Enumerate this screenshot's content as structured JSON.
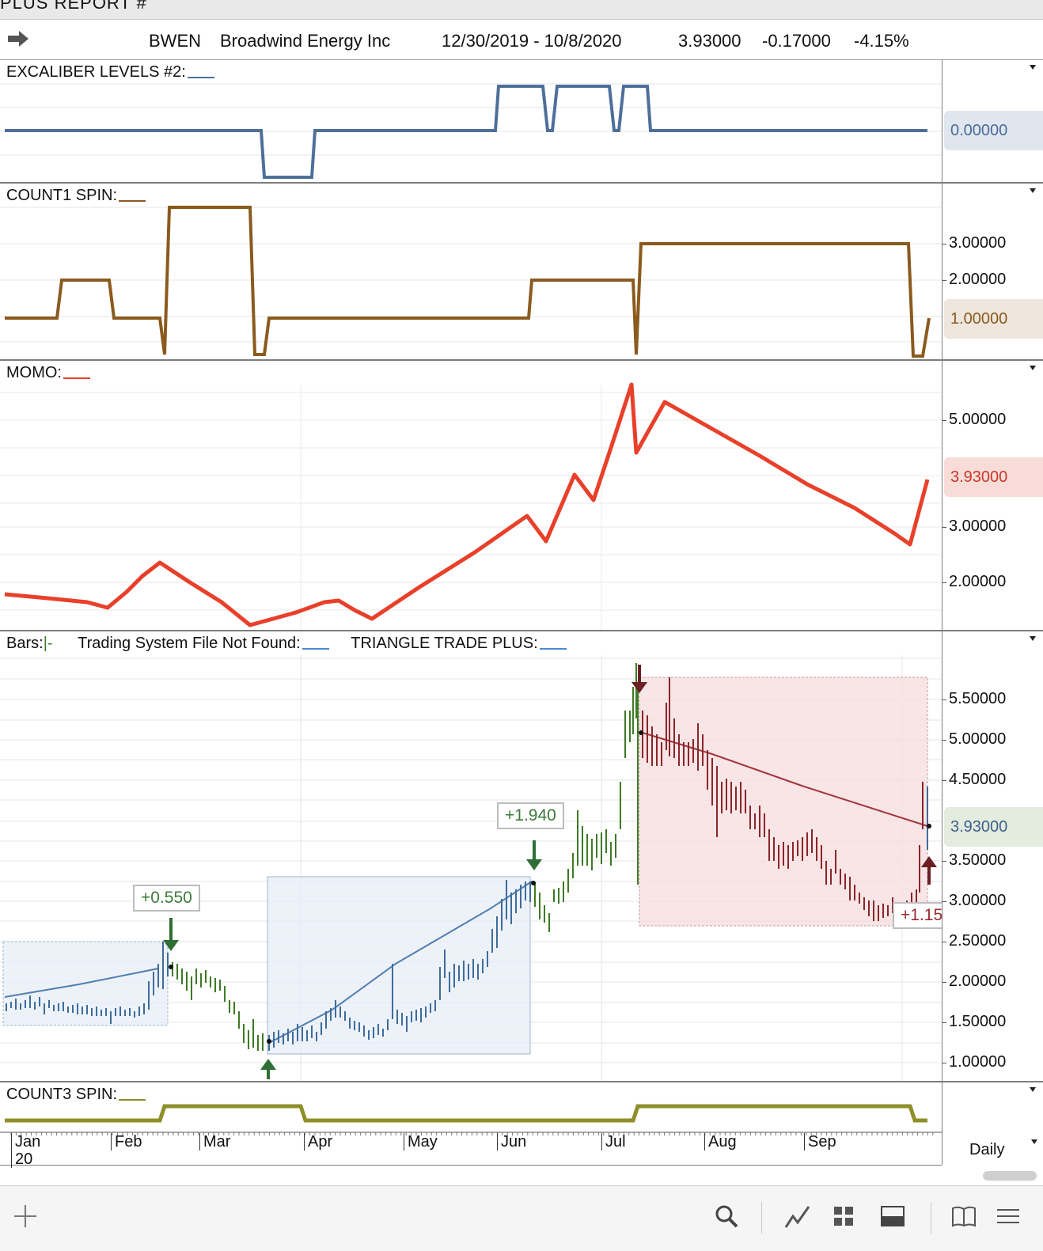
{
  "window": {
    "title_partial": "PLUS REPORT #"
  },
  "header": {
    "symbol": "BWEN",
    "company": "Broadwind Energy Inc",
    "date_range": "12/30/2019 - 10/8/2020",
    "last": "3.93000",
    "change": "-0.17000",
    "pct_change": "-4.15%"
  },
  "panels": {
    "excaliber": {
      "title": "EXCALIBER LEVELS #2:",
      "color": "#4a6fa0",
      "value": "0.00000"
    },
    "count1": {
      "title": "COUNT1 SPIN:",
      "color": "#8a5a1e",
      "value": "1.00000",
      "ticks": [
        "3.00000",
        "2.00000"
      ]
    },
    "momo": {
      "title": "MOMO:",
      "color": "#e8402a",
      "value": "3.93000",
      "ticks": [
        "5.00000",
        "3.00000",
        "2.00000"
      ]
    },
    "bars": {
      "title_bars": "Bars:",
      "title_bars_sym": "|-",
      "title_system": "Trading System File Not Found:",
      "title_triangle": "TRIANGLE TRADE PLUS:",
      "value": "3.93000",
      "ticks": [
        "5.50000",
        "5.00000",
        "4.50000",
        "3.50000",
        "3.00000",
        "2.50000",
        "2.00000",
        "1.50000",
        "1.00000"
      ],
      "labels": {
        "trade1": "+0.550",
        "trade2": "+1.940",
        "trade3": "+1.15"
      }
    },
    "count3": {
      "title": "COUNT3 SPIN:",
      "color": "#8f8f2a"
    }
  },
  "xaxis": {
    "months": [
      "Jan",
      "Feb",
      "Mar",
      "Apr",
      "May",
      "Jun",
      "Jul",
      "Aug",
      "Sep"
    ],
    "year": "20",
    "interval": "Daily"
  },
  "toolbar": {
    "icons": [
      "plus-icon",
      "search-icon",
      "line-chart-icon",
      "grid-icon",
      "layout-icon",
      "book-icon",
      "menu-icon"
    ]
  }
}
